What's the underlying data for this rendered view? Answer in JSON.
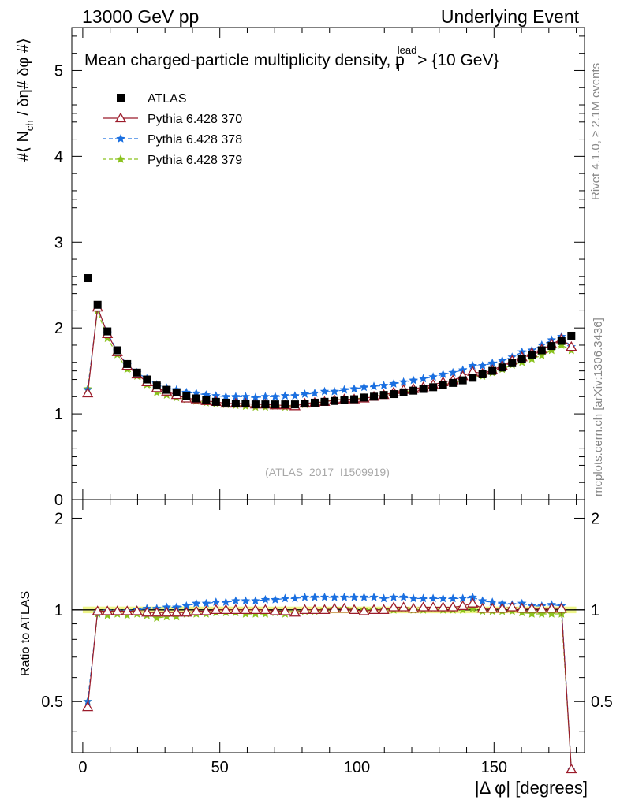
{
  "header": {
    "left": "13000 GeV pp",
    "right": "Underlying Event"
  },
  "side": {
    "rivet": "Rivet 4.1.0, ≥ 2.1M events",
    "mcplots": "mcplots.cern.ch [arXiv:1306.3436]"
  },
  "chart_data": {
    "type": "scatter",
    "title": "Mean charged-particle multiplicity density, p",
    "title_sup": "lead",
    "title_sub": "T",
    "title_tail": " > {10 GeV}",
    "watermark": "(ATLAS_2017_I1509919)",
    "ylabel": "#⟨ N",
    "ylabel_sub": "ch",
    "ylabel_tail": " / δη# δφ #⟩",
    "ratio_ylabel": "Ratio to ATLAS",
    "xlabel": "|Δ φ| [degrees]",
    "xlim": [
      -4,
      183
    ],
    "ylim": [
      0,
      5.5
    ],
    "ratio_ylim": [
      0.34,
      2.3
    ],
    "xticks": [
      0,
      50,
      100,
      150
    ],
    "yticks": [
      1,
      2,
      3,
      4,
      5
    ],
    "ratio_yticks": [
      0.5,
      1,
      2
    ],
    "legend": [
      "ATLAS",
      "Pythia 6.428 370",
      "Pythia 6.428 378",
      "Pythia 6.428 379"
    ],
    "colors": {
      "atlas": "#000000",
      "p370": "#9b1b2a",
      "p378": "#1a6fe0",
      "p379": "#8ac21d",
      "band": "#eef58a"
    },
    "x": [
      1.8,
      5.4,
      9.0,
      12.6,
      16.2,
      19.8,
      23.4,
      27.0,
      30.6,
      34.2,
      37.8,
      41.4,
      45.0,
      48.6,
      52.2,
      55.8,
      59.4,
      63.0,
      66.6,
      70.2,
      73.8,
      77.4,
      81.0,
      84.6,
      88.2,
      91.8,
      95.4,
      99.0,
      102.6,
      106.2,
      109.8,
      113.4,
      117.0,
      120.6,
      124.2,
      127.8,
      131.4,
      135.0,
      138.6,
      142.2,
      145.8,
      149.4,
      153.0,
      156.6,
      160.2,
      163.8,
      167.4,
      171.0,
      174.6,
      178.2
    ],
    "atlas": [
      2.58,
      2.27,
      1.96,
      1.74,
      1.58,
      1.48,
      1.4,
      1.33,
      1.28,
      1.25,
      1.21,
      1.18,
      1.16,
      1.14,
      1.13,
      1.12,
      1.12,
      1.11,
      1.11,
      1.11,
      1.11,
      1.11,
      1.12,
      1.13,
      1.14,
      1.15,
      1.16,
      1.17,
      1.19,
      1.2,
      1.22,
      1.23,
      1.25,
      1.27,
      1.29,
      1.31,
      1.34,
      1.36,
      1.39,
      1.42,
      1.46,
      1.5,
      1.54,
      1.59,
      1.64,
      1.69,
      1.74,
      1.79,
      1.85,
      1.91
    ],
    "p370": [
      1.24,
      2.24,
      1.93,
      1.72,
      1.56,
      1.46,
      1.37,
      1.3,
      1.26,
      1.22,
      1.18,
      1.17,
      1.15,
      1.14,
      1.12,
      1.12,
      1.12,
      1.11,
      1.11,
      1.1,
      1.1,
      1.09,
      1.12,
      1.13,
      1.14,
      1.16,
      1.17,
      1.17,
      1.18,
      1.2,
      1.22,
      1.25,
      1.28,
      1.29,
      1.31,
      1.34,
      1.37,
      1.39,
      1.44,
      1.49,
      1.47,
      1.51,
      1.56,
      1.62,
      1.66,
      1.71,
      1.75,
      1.81,
      1.87,
      1.78
    ],
    "p378": [
      1.28,
      2.23,
      1.94,
      1.73,
      1.57,
      1.48,
      1.41,
      1.34,
      1.3,
      1.28,
      1.25,
      1.24,
      1.22,
      1.21,
      1.2,
      1.2,
      1.2,
      1.19,
      1.2,
      1.2,
      1.21,
      1.21,
      1.23,
      1.24,
      1.26,
      1.26,
      1.28,
      1.29,
      1.31,
      1.32,
      1.33,
      1.35,
      1.37,
      1.39,
      1.41,
      1.43,
      1.46,
      1.48,
      1.51,
      1.56,
      1.56,
      1.59,
      1.62,
      1.66,
      1.72,
      1.74,
      1.8,
      1.86,
      1.9,
      1.78
    ],
    "p379": [
      1.29,
      2.2,
      1.88,
      1.69,
      1.52,
      1.44,
      1.34,
      1.25,
      1.22,
      1.19,
      1.17,
      1.15,
      1.13,
      1.12,
      1.11,
      1.1,
      1.09,
      1.08,
      1.08,
      1.09,
      1.08,
      1.09,
      1.11,
      1.12,
      1.14,
      1.16,
      1.17,
      1.17,
      1.19,
      1.2,
      1.22,
      1.23,
      1.26,
      1.27,
      1.29,
      1.32,
      1.34,
      1.36,
      1.39,
      1.43,
      1.44,
      1.48,
      1.52,
      1.57,
      1.6,
      1.64,
      1.68,
      1.74,
      1.8,
      1.74
    ],
    "ratio370": [
      0.48,
      0.99,
      0.99,
      0.99,
      0.99,
      0.99,
      0.98,
      0.98,
      0.98,
      0.98,
      0.98,
      0.99,
      0.99,
      1.0,
      1.0,
      1.0,
      1.0,
      1.0,
      1.0,
      0.99,
      0.99,
      0.98,
      1.0,
      1.0,
      1.0,
      1.01,
      1.01,
      1.0,
      0.99,
      1.0,
      1.0,
      1.02,
      1.02,
      1.01,
      1.02,
      1.02,
      1.02,
      1.02,
      1.03,
      1.05,
      1.01,
      1.01,
      1.01,
      1.02,
      1.01,
      1.01,
      1.01,
      1.01,
      1.01,
      0.3
    ],
    "ratio378": [
      0.5,
      0.98,
      0.99,
      0.99,
      0.99,
      1.0,
      1.01,
      1.01,
      1.02,
      1.02,
      1.03,
      1.05,
      1.05,
      1.06,
      1.06,
      1.07,
      1.07,
      1.07,
      1.08,
      1.08,
      1.09,
      1.09,
      1.1,
      1.1,
      1.1,
      1.1,
      1.1,
      1.1,
      1.1,
      1.1,
      1.09,
      1.1,
      1.1,
      1.09,
      1.09,
      1.09,
      1.09,
      1.09,
      1.09,
      1.1,
      1.07,
      1.06,
      1.05,
      1.04,
      1.05,
      1.03,
      1.03,
      1.04,
      1.03,
      0.3
    ],
    "ratio379": [
      0.5,
      0.97,
      0.96,
      0.97,
      0.96,
      0.97,
      0.96,
      0.94,
      0.95,
      0.95,
      0.97,
      0.97,
      0.97,
      0.98,
      0.98,
      0.98,
      0.97,
      0.97,
      0.97,
      0.98,
      0.97,
      0.98,
      0.99,
      0.99,
      1.0,
      1.01,
      1.01,
      1.0,
      1.0,
      1.0,
      1.0,
      1.0,
      1.01,
      1.0,
      1.0,
      1.01,
      1.0,
      1.0,
      1.0,
      1.01,
      0.99,
      0.99,
      0.99,
      0.99,
      0.98,
      0.97,
      0.97,
      0.97,
      0.97,
      0.3
    ]
  }
}
